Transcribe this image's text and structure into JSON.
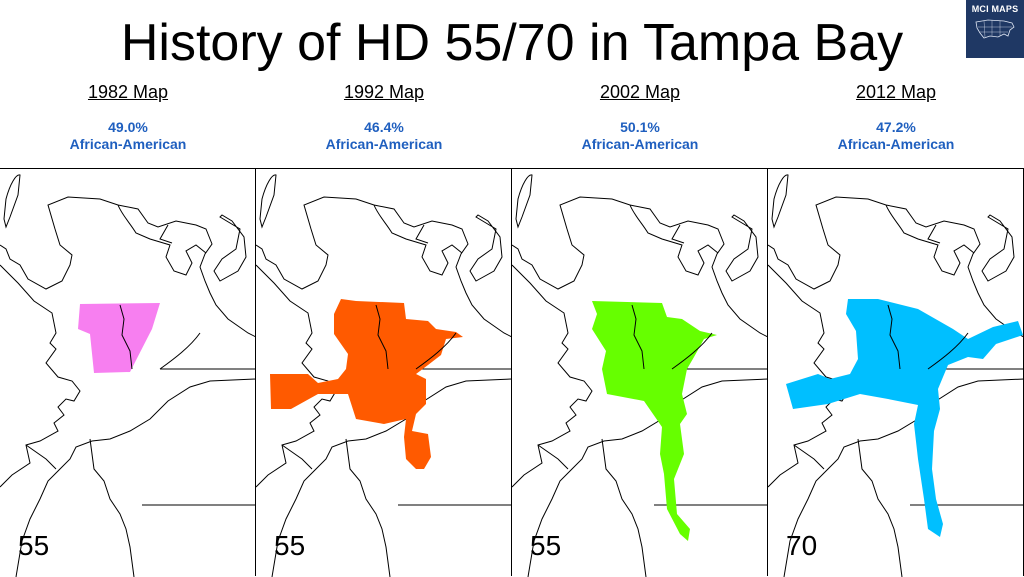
{
  "title": "History of HD 55/70 in Tampa Bay",
  "logo": {
    "brand": "MCI MAPS"
  },
  "panels": [
    {
      "year_label": "1982 Map",
      "percent": "49.0%",
      "demographic": "African-American",
      "district": "55",
      "color": "#f77ff0"
    },
    {
      "year_label": "1992 Map",
      "percent": "46.4%",
      "demographic": "African-American",
      "district": "55",
      "color": "#ff5a00"
    },
    {
      "year_label": "2002 Map",
      "percent": "50.1%",
      "demographic": "African-American",
      "district": "55",
      "color": "#66ff00"
    },
    {
      "year_label": "2012 Map",
      "percent": "47.2%",
      "demographic": "African-American",
      "district": "70",
      "color": "#00bfff"
    }
  ]
}
